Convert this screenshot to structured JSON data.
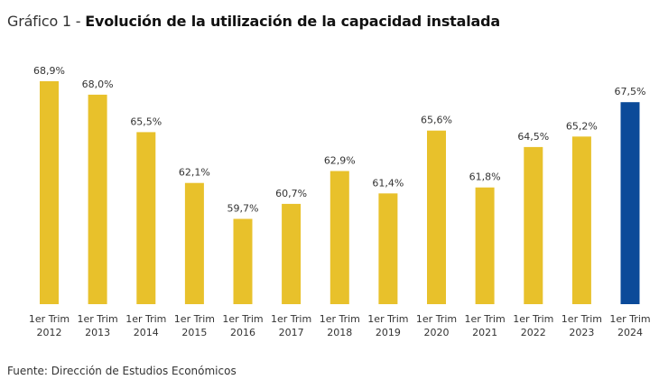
{
  "title": {
    "prefix": "Gráfico 1 - ",
    "main": "Evolución de la utilización de la capacidad instalada"
  },
  "source": "Fuente: Dirección de Estudios Económicos",
  "colors": {
    "default_bar": "#E8C12B",
    "highlight_bar": "#0B4A99"
  },
  "chart_data": {
    "type": "bar",
    "title": "Evolución de la utilización de la capacidad instalada",
    "xlabel": "",
    "ylabel": "",
    "categories": [
      [
        "1er Trim",
        "2012"
      ],
      [
        "1er Trim",
        "2013"
      ],
      [
        "1er Trim",
        "2014"
      ],
      [
        "1er Trim",
        "2015"
      ],
      [
        "1er Trim",
        "2016"
      ],
      [
        "1er Trim",
        "2017"
      ],
      [
        "1er Trim",
        "2018"
      ],
      [
        "1er Trim",
        "2019"
      ],
      [
        "1er Trim",
        "2020"
      ],
      [
        "1er Trim",
        "2021"
      ],
      [
        "1er Trim",
        "2022"
      ],
      [
        "1er Trim",
        "2023"
      ],
      [
        "1er Trim",
        "2024"
      ]
    ],
    "values": [
      68.9,
      68.0,
      65.5,
      62.1,
      59.7,
      60.7,
      62.9,
      61.4,
      65.6,
      61.8,
      64.5,
      65.2,
      67.5
    ],
    "value_labels": [
      "68,9%",
      "68,0%",
      "65,5%",
      "62,1%",
      "59,7%",
      "60,7%",
      "62,9%",
      "61,4%",
      "65,6%",
      "61,8%",
      "64,5%",
      "65,2%",
      "67,5%"
    ],
    "highlight_index": 12,
    "ylim": [
      54,
      70
    ],
    "grid": false,
    "legend": "none"
  }
}
